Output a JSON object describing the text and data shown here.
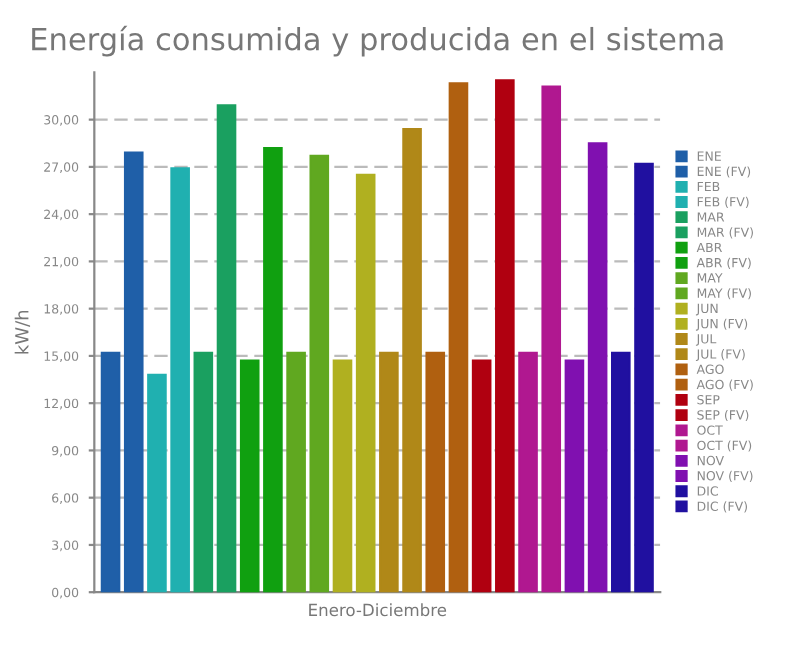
{
  "chart_data": {
    "type": "bar",
    "title": "Energía consumida y producida en el sistema",
    "xlabel": "Enero-Diciembre",
    "ylabel": "kW/h",
    "categories": [
      null,
      null,
      null,
      null,
      null,
      null,
      null,
      null,
      null,
      null,
      null,
      null,
      null,
      null,
      null,
      null,
      null,
      null,
      null,
      null,
      null,
      null,
      null,
      null
    ],
    "series": [
      {
        "name": "ENE",
        "color": "#1f5fa8",
        "values": [
          15.2,
          null,
          null,
          null,
          null,
          null,
          null,
          null,
          null,
          null,
          null,
          null,
          null,
          null,
          null,
          null,
          null,
          null,
          null,
          null,
          null,
          null,
          null,
          null
        ]
      },
      {
        "name": "ENE (FV)",
        "color": "#1f5fa8",
        "values": [
          null,
          27.9,
          null,
          null,
          null,
          null,
          null,
          null,
          null,
          null,
          null,
          null,
          null,
          null,
          null,
          null,
          null,
          null,
          null,
          null,
          null,
          null,
          null,
          null
        ]
      },
      {
        "name": "FEB",
        "color": "#20b0b0",
        "values": [
          null,
          null,
          13.8,
          null,
          null,
          null,
          null,
          null,
          null,
          null,
          null,
          null,
          null,
          null,
          null,
          null,
          null,
          null,
          null,
          null,
          null,
          null,
          null,
          null
        ]
      },
      {
        "name": "FEB (FV)",
        "color": "#20b0b0",
        "values": [
          null,
          null,
          null,
          26.9,
          null,
          null,
          null,
          null,
          null,
          null,
          null,
          null,
          null,
          null,
          null,
          null,
          null,
          null,
          null,
          null,
          null,
          null,
          null,
          null
        ]
      },
      {
        "name": "MAR",
        "color": "#1aa060",
        "values": [
          null,
          null,
          null,
          null,
          15.2,
          null,
          null,
          null,
          null,
          null,
          null,
          null,
          null,
          null,
          null,
          null,
          null,
          null,
          null,
          null,
          null,
          null,
          null,
          null
        ]
      },
      {
        "name": "MAR (FV)",
        "color": "#1aa060",
        "values": [
          null,
          null,
          null,
          null,
          null,
          30.9,
          null,
          null,
          null,
          null,
          null,
          null,
          null,
          null,
          null,
          null,
          null,
          null,
          null,
          null,
          null,
          null,
          null,
          null
        ]
      },
      {
        "name": "ABR",
        "color": "#10a010",
        "values": [
          null,
          null,
          null,
          null,
          null,
          null,
          14.7,
          null,
          null,
          null,
          null,
          null,
          null,
          null,
          null,
          null,
          null,
          null,
          null,
          null,
          null,
          null,
          null,
          null
        ]
      },
      {
        "name": "ABR (FV)",
        "color": "#10a010",
        "values": [
          null,
          null,
          null,
          null,
          null,
          null,
          null,
          28.2,
          null,
          null,
          null,
          null,
          null,
          null,
          null,
          null,
          null,
          null,
          null,
          null,
          null,
          null,
          null,
          null
        ]
      },
      {
        "name": "MAY",
        "color": "#60a820",
        "values": [
          null,
          null,
          null,
          null,
          null,
          null,
          null,
          null,
          15.2,
          null,
          null,
          null,
          null,
          null,
          null,
          null,
          null,
          null,
          null,
          null,
          null,
          null,
          null,
          null
        ]
      },
      {
        "name": "MAY (FV)",
        "color": "#60a820",
        "values": [
          null,
          null,
          null,
          null,
          null,
          null,
          null,
          null,
          null,
          27.7,
          null,
          null,
          null,
          null,
          null,
          null,
          null,
          null,
          null,
          null,
          null,
          null,
          null,
          null
        ]
      },
      {
        "name": "JUN",
        "color": "#b0b020",
        "values": [
          null,
          null,
          null,
          null,
          null,
          null,
          null,
          null,
          null,
          null,
          14.7,
          null,
          null,
          null,
          null,
          null,
          null,
          null,
          null,
          null,
          null,
          null,
          null,
          null
        ]
      },
      {
        "name": "JUN (FV)",
        "color": "#b0b020",
        "values": [
          null,
          null,
          null,
          null,
          null,
          null,
          null,
          null,
          null,
          null,
          null,
          26.5,
          null,
          null,
          null,
          null,
          null,
          null,
          null,
          null,
          null,
          null,
          null,
          null
        ]
      },
      {
        "name": "JUL",
        "color": "#b08818",
        "values": [
          null,
          null,
          null,
          null,
          null,
          null,
          null,
          null,
          null,
          null,
          null,
          null,
          15.2,
          null,
          null,
          null,
          null,
          null,
          null,
          null,
          null,
          null,
          null,
          null
        ]
      },
      {
        "name": "JUL (FV)",
        "color": "#b08818",
        "values": [
          null,
          null,
          null,
          null,
          null,
          null,
          null,
          null,
          null,
          null,
          null,
          null,
          null,
          29.4,
          null,
          null,
          null,
          null,
          null,
          null,
          null,
          null,
          null,
          null
        ]
      },
      {
        "name": "AGO",
        "color": "#b06010",
        "values": [
          null,
          null,
          null,
          null,
          null,
          null,
          null,
          null,
          null,
          null,
          null,
          null,
          null,
          null,
          15.2,
          null,
          null,
          null,
          null,
          null,
          null,
          null,
          null,
          null
        ]
      },
      {
        "name": "AGO (FV)",
        "color": "#b06010",
        "values": [
          null,
          null,
          null,
          null,
          null,
          null,
          null,
          null,
          null,
          null,
          null,
          null,
          null,
          null,
          null,
          32.3,
          null,
          null,
          null,
          null,
          null,
          null,
          null,
          null
        ]
      },
      {
        "name": "SEP",
        "color": "#b00010",
        "values": [
          null,
          null,
          null,
          null,
          null,
          null,
          null,
          null,
          null,
          null,
          null,
          null,
          null,
          null,
          null,
          null,
          14.7,
          null,
          null,
          null,
          null,
          null,
          null,
          null
        ]
      },
      {
        "name": "SEP (FV)",
        "color": "#b00010",
        "values": [
          null,
          null,
          null,
          null,
          null,
          null,
          null,
          null,
          null,
          null,
          null,
          null,
          null,
          null,
          null,
          null,
          null,
          32.5,
          null,
          null,
          null,
          null,
          null,
          null
        ]
      },
      {
        "name": "OCT",
        "color": "#b01890",
        "values": [
          null,
          null,
          null,
          null,
          null,
          null,
          null,
          null,
          null,
          null,
          null,
          null,
          null,
          null,
          null,
          null,
          null,
          null,
          15.2,
          null,
          null,
          null,
          null,
          null
        ]
      },
      {
        "name": "OCT (FV)",
        "color": "#b01890",
        "values": [
          null,
          null,
          null,
          null,
          null,
          null,
          null,
          null,
          null,
          null,
          null,
          null,
          null,
          null,
          null,
          null,
          null,
          null,
          null,
          32.1,
          null,
          null,
          null,
          null
        ]
      },
      {
        "name": "NOV",
        "color": "#8010b0",
        "values": [
          null,
          null,
          null,
          null,
          null,
          null,
          null,
          null,
          null,
          null,
          null,
          null,
          null,
          null,
          null,
          null,
          null,
          null,
          null,
          null,
          14.7,
          null,
          null,
          null
        ]
      },
      {
        "name": "NOV (FV)",
        "color": "#8010b0",
        "values": [
          null,
          null,
          null,
          null,
          null,
          null,
          null,
          null,
          null,
          null,
          null,
          null,
          null,
          null,
          null,
          null,
          null,
          null,
          null,
          null,
          null,
          28.5,
          null,
          null
        ]
      },
      {
        "name": "DIC",
        "color": "#2010a0",
        "values": [
          null,
          null,
          null,
          null,
          null,
          null,
          null,
          null,
          null,
          null,
          null,
          null,
          null,
          null,
          null,
          null,
          null,
          null,
          null,
          null,
          null,
          null,
          15.2,
          null
        ]
      },
      {
        "name": "DIC (FV)",
        "color": "#2010a0",
        "values": [
          null,
          null,
          null,
          null,
          null,
          null,
          null,
          null,
          null,
          null,
          null,
          null,
          null,
          null,
          null,
          null,
          null,
          null,
          null,
          null,
          null,
          null,
          null,
          27.2
        ]
      }
    ],
    "ylim": [
      0,
      33
    ],
    "yticks": [
      {
        "value": 0,
        "label": "0,00"
      },
      {
        "value": 3,
        "label": "3,00"
      },
      {
        "value": 6,
        "label": "6,00"
      },
      {
        "value": 9,
        "label": "9,00"
      },
      {
        "value": 12,
        "label": "12,00"
      },
      {
        "value": 15,
        "label": "15,00"
      },
      {
        "value": 18,
        "label": "18,00"
      },
      {
        "value": 21,
        "label": "21,00"
      },
      {
        "value": 24,
        "label": "24,00"
      },
      {
        "value": 27,
        "label": "27,00"
      },
      {
        "value": 30,
        "label": "30,00"
      }
    ],
    "tick_labels": "y",
    "grid": "y",
    "legend": "right"
  }
}
